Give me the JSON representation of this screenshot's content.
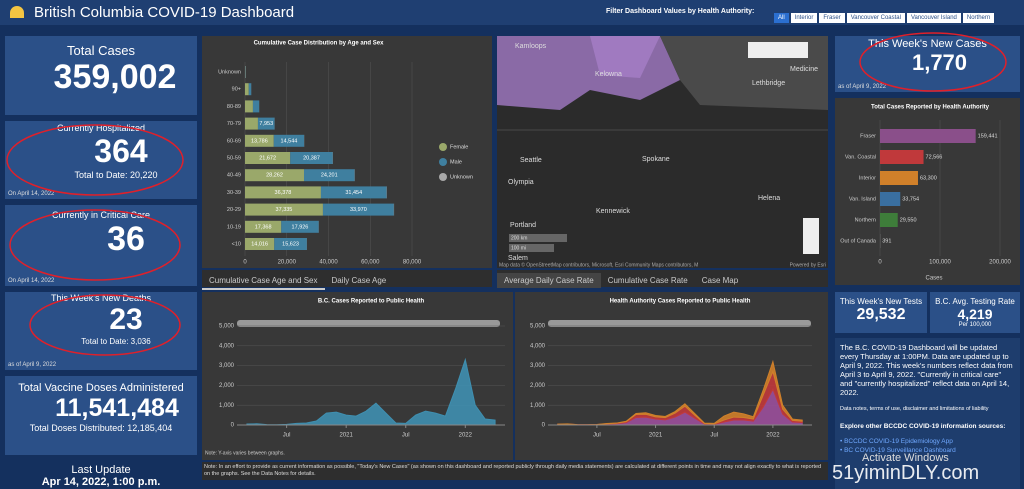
{
  "header": {
    "title": "British Columbia COVID-19 Dashboard",
    "filter_label": "Filter Dashboard Values by Health Authority:",
    "filters": [
      "All",
      "Interior",
      "Fraser",
      "Vancouver Coastal",
      "Vancouver Island",
      "Northern"
    ]
  },
  "cards": [
    {
      "title": "Total Cases",
      "value": "359,002"
    },
    {
      "title": "Currently Hospitalized",
      "value": "364",
      "sub": "Total to Date: 20,220",
      "date": "On April 14, 2022"
    },
    {
      "title": "Currently in Critical Care",
      "value": "36",
      "date": "On April 14, 2022"
    },
    {
      "title": "This Week's New Deaths",
      "value": "23",
      "sub": "Total to Date: 3,036",
      "date": "as of April 9, 2022"
    },
    {
      "title": "Total Vaccine Doses Administered",
      "value": "11,541,484",
      "sub": "Total Doses Distributed: 12,185,404"
    }
  ],
  "last_update": {
    "label": "Last Update",
    "value": "Apr 14, 2022, 1:00 p.m."
  },
  "new_cases": {
    "title": "This Week's New Cases",
    "value": "1,770",
    "date": "as of April 9, 2022"
  },
  "age_chart": {
    "type": "bar",
    "orientation": "horizontal",
    "stacked": true,
    "title": "Cumulative Case Distribution by Age and Sex",
    "categories": [
      "Unknown",
      "90+",
      "80-89",
      "70-79",
      "60-69",
      "50-59",
      "40-49",
      "30-39",
      "20-29",
      "10-19",
      "<10"
    ],
    "series": [
      {
        "name": "Female",
        "color": "#9aa86a",
        "values": [
          150,
          1800,
          3800,
          6200,
          13786,
          21672,
          28262,
          36378,
          37335,
          17368,
          14016
        ],
        "value_labels": [
          null,
          null,
          null,
          null,
          "13,786",
          "21,672",
          "28,262",
          "36,378",
          "37,335",
          "17,368",
          "14,016"
        ]
      },
      {
        "name": "Male",
        "color": "#3f7f9f",
        "values": [
          150,
          1200,
          3000,
          7953,
          14544,
          20387,
          24201,
          31454,
          33970,
          17926,
          15623
        ],
        "value_labels": [
          null,
          null,
          null,
          "7,953",
          "14,544",
          "20,387",
          "24,201",
          "31,454",
          "33,970",
          "17,926",
          "15,623"
        ]
      },
      {
        "name": "Unknown",
        "color": "#a8a8a8",
        "values": [
          100,
          20,
          30,
          40,
          60,
          80,
          100,
          120,
          110,
          60,
          50
        ]
      }
    ],
    "xlim": [
      0,
      80000
    ],
    "xticks": [
      0,
      {
        "value": 20000,
        "label": "20,000"
      },
      {
        "value": 40000,
        "label": "40,000"
      },
      {
        "value": 60000,
        "label": "60,000"
      },
      {
        "value": 80000,
        "label": "80,000"
      }
    ],
    "grid": true,
    "legend": "right",
    "tabs": [
      "Cumulative Case Age and Sex",
      "Daily Case Age"
    ]
  },
  "map": {
    "labels": [
      "Kamloops",
      "Kelowna",
      "Lethbridge",
      "Medicine",
      "Seattle",
      "Spokane",
      "Olympia",
      "Kennewick",
      "Helena",
      "Portland",
      "Salem"
    ],
    "attribution": "Map data © OpenStreetMap contributors, Microsoft, Esri Community Maps contributors, M",
    "powered": "Powered by Esri",
    "scale": [
      "200 km",
      "100 mi"
    ],
    "tabs": [
      "Average Daily Case Rate",
      "Cumulative Case Rate",
      "Case Map"
    ]
  },
  "ha_chart": {
    "type": "bar",
    "orientation": "horizontal",
    "title": "Total Cases Reported by Health Authority",
    "categories": [
      "Fraser",
      "Van. Coastal",
      "Interior",
      "Van. Island",
      "Northern",
      "Out of Canada"
    ],
    "values": [
      159441,
      72566,
      63300,
      33754,
      29550,
      391
    ],
    "value_labels": [
      "159,441",
      "72,566",
      "63,300",
      "33,754",
      "29,550",
      "391"
    ],
    "colors": [
      "#8a4f8a",
      "#c0393b",
      "#d0802a",
      "#3a6fa0",
      "#3e7d3a",
      "#888888"
    ],
    "xlim": [
      0,
      200000
    ],
    "xticks": [
      0,
      {
        "value": 100000,
        "label": "100,000"
      },
      {
        "value": 200000,
        "label": "200,000"
      }
    ],
    "xlabel": "Cases"
  },
  "tests": {
    "title": "This Week's New Tests",
    "value": "29,532"
  },
  "rate": {
    "title": "B.C. Avg. Testing Rate",
    "value": "4,219",
    "sub": "Per 100,000"
  },
  "info": {
    "text": "The B.C. COVID-19 Dashboard will be updated every Thursday at 1:00PM. Data are updated up to April 9, 2022. This week's numbers reflect data from April 3 to April 9, 2022. \"Currently in critical care\" and \"currently hospitalized\" reflect data on April 14, 2022.",
    "notes": "Data notes, terms of use, disclaimer and limitations of liability",
    "explore": "Explore other BCCDC COVID-19 information sources:",
    "links": [
      "BCCDC COVID-19 Epidemiology App",
      "BC COVID-19 Surveillance Dashboard"
    ]
  },
  "bc_chart": {
    "type": "area",
    "title": "B.C. Cases Reported to Public Health",
    "x": [
      "2020-03",
      "2020-04",
      "2020-05",
      "2020-06",
      "2020-07",
      "2020-08",
      "2020-09",
      "2020-10",
      "2020-11",
      "2020-12",
      "2021-01",
      "2021-02",
      "2021-03",
      "2021-04",
      "2021-05",
      "2021-06",
      "2021-07",
      "2021-08",
      "2021-09",
      "2021-10",
      "2021-11",
      "2021-12",
      "2022-01",
      "2022-02",
      "2022-03",
      "2022-04"
    ],
    "series": [
      {
        "name": "Cases",
        "color": "#3f8fb0",
        "values": [
          50,
          60,
          20,
          15,
          30,
          80,
          100,
          200,
          600,
          650,
          500,
          450,
          700,
          1100,
          600,
          100,
          80,
          500,
          700,
          600,
          450,
          1800,
          3300,
          1000,
          300,
          250
        ]
      }
    ],
    "xlim": [
      "2020-02",
      "2022-05"
    ],
    "xticks": [
      {
        "value": "2020-07",
        "label": "Jul"
      },
      {
        "value": "2021-01",
        "label": "2021"
      },
      {
        "value": "2021-07",
        "label": "Jul"
      },
      {
        "value": "2022-01",
        "label": "2022"
      }
    ],
    "ylim": [
      0,
      5000
    ],
    "yticks": [
      0,
      {
        "value": 1000,
        "label": "1,000"
      },
      {
        "value": 2000,
        "label": "2,000"
      },
      {
        "value": 3000,
        "label": "3,000"
      },
      {
        "value": 4000,
        "label": "4,000"
      },
      {
        "value": 5000,
        "label": "5,000"
      }
    ],
    "note": "Note: Y-axis varies between graphs."
  },
  "ha_time_chart": {
    "type": "area",
    "stacked": true,
    "title": "Health Authority Cases Reported to Public Health",
    "x": [
      "2020-03",
      "2020-04",
      "2020-05",
      "2020-06",
      "2020-07",
      "2020-08",
      "2020-09",
      "2020-10",
      "2020-11",
      "2020-12",
      "2021-01",
      "2021-02",
      "2021-03",
      "2021-04",
      "2021-05",
      "2021-06",
      "2021-07",
      "2021-08",
      "2021-09",
      "2021-10",
      "2021-11",
      "2021-12",
      "2022-01",
      "2022-02",
      "2022-03",
      "2022-04"
    ],
    "series": [
      {
        "name": "Fraser",
        "color": "#9b4f9b",
        "values": [
          25,
          30,
          10,
          8,
          15,
          45,
          60,
          120,
          380,
          400,
          300,
          260,
          400,
          650,
          350,
          50,
          30,
          150,
          250,
          250,
          200,
          900,
          1800,
          550,
          150,
          120
        ]
      },
      {
        "name": "Van. Coastal",
        "color": "#c0393b",
        "values": [
          15,
          20,
          6,
          4,
          8,
          20,
          30,
          50,
          150,
          140,
          110,
          110,
          200,
          300,
          150,
          25,
          25,
          100,
          150,
          130,
          100,
          600,
          900,
          250,
          80,
          70
        ]
      },
      {
        "name": "Interior",
        "color": "#d0802a",
        "values": [
          5,
          5,
          2,
          2,
          5,
          10,
          8,
          20,
          50,
          80,
          70,
          60,
          80,
          120,
          80,
          20,
          25,
          200,
          250,
          180,
          120,
          250,
          500,
          200,
          70,
          60
        ]
      }
    ],
    "xlim": [
      "2020-02",
      "2022-05"
    ],
    "xticks": [
      {
        "value": "2020-07",
        "label": "Jul"
      },
      {
        "value": "2021-01",
        "label": "2021"
      },
      {
        "value": "2021-07",
        "label": "Jul"
      },
      {
        "value": "2022-01",
        "label": "2022"
      }
    ],
    "ylim": [
      0,
      5000
    ],
    "yticks": [
      0,
      {
        "value": 1000,
        "label": "1,000"
      },
      {
        "value": 2000,
        "label": "2,000"
      },
      {
        "value": 3000,
        "label": "3,000"
      },
      {
        "value": 4000,
        "label": "4,000"
      },
      {
        "value": 5000,
        "label": "5,000"
      }
    ]
  },
  "footnote": "Note: In an effort to provide as current information as possible, \"Today's New Cases\" (as shown on this dashboard and reported publicly through daily media statements) are calculated at different points in time and may not align exactly to what is reported on the graphs. See the Data Notes for details.",
  "watermark": [
    "Activate Windows",
    "51yiminDLY.com"
  ]
}
